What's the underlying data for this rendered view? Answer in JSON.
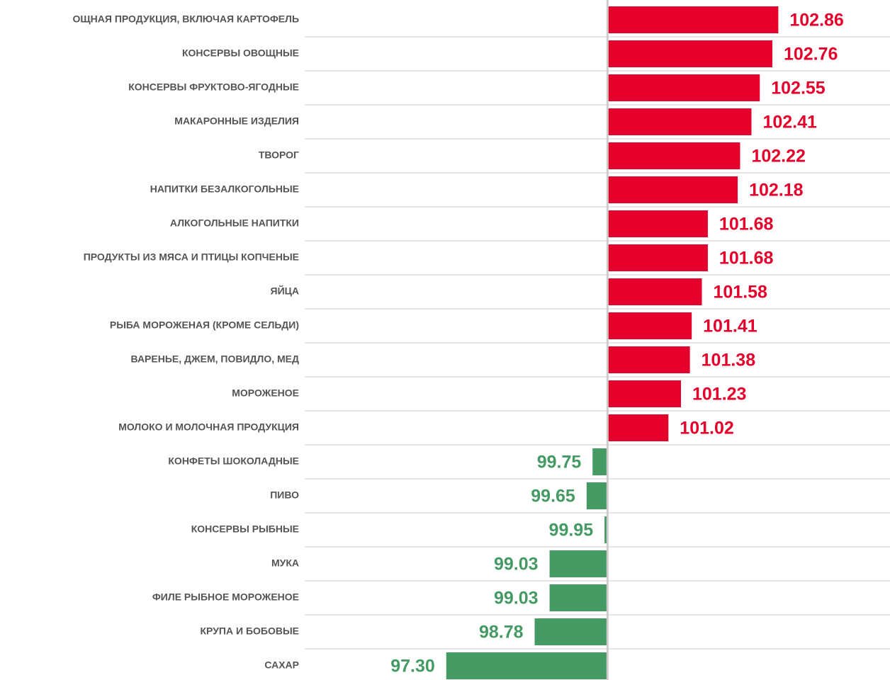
{
  "chart_data": {
    "type": "bar",
    "orientation": "horizontal",
    "categories": [
      "ОЩНАЯ ПРОДУКЦИЯ, ВКЛЮЧАЯ КАРТОФЕЛЬ",
      "КОНСЕРВЫ ОВОЩНЫЕ",
      "КОНСЕРВЫ ФРУКТОВО-ЯГОДНЫЕ",
      "МАКАРОННЫЕ ИЗДЕЛИЯ",
      "ТВОРОГ",
      "НАПИТКИ БЕЗАЛКОГОЛЬНЫЕ",
      "АЛКОГОЛЬНЫЕ НАПИТКИ",
      "ПРОДУКТЫ ИЗ МЯСА И ПТИЦЫ КОПЧЕНЫЕ",
      "ЯЙЦА",
      "РЫБА МОРОЖЕНАЯ (КРОМЕ СЕЛЬДИ)",
      "ВАРЕНЬЕ, ДЖЕМ, ПОВИДЛО, МЕД",
      "МОРОЖЕНОЕ",
      "МОЛОКО И МОЛОЧНАЯ ПРОДУКЦИЯ",
      "КОНФЕТЫ ШОКОЛАДНЫЕ",
      "ПИВО",
      "КОНСЕРВЫ РЫБНЫЕ",
      "МУКА",
      "ФИЛЕ РЫБНОЕ МОРОЖЕНОЕ",
      "КРУПА И БОБОВЫЕ",
      "САХАР"
    ],
    "values": [
      102.86,
      102.76,
      102.55,
      102.41,
      102.22,
      102.18,
      101.68,
      101.68,
      101.58,
      101.41,
      101.38,
      101.23,
      101.02,
      99.75,
      99.65,
      99.95,
      99.03,
      99.03,
      98.78,
      97.3
    ],
    "value_labels": [
      "102.86",
      "102.76",
      "102.55",
      "102.41",
      "102.22",
      "102.18",
      "101.68",
      "101.68",
      "101.58",
      "101.41",
      "101.38",
      "101.23",
      "101.02",
      "99.75",
      "99.65",
      "99.95",
      "99.03",
      "99.03",
      "98.78",
      "97.30"
    ],
    "reference_line": 100,
    "xlim": [
      94.93,
      104.73
    ],
    "positive_color": "#e4002b",
    "negative_color": "#459a64"
  }
}
